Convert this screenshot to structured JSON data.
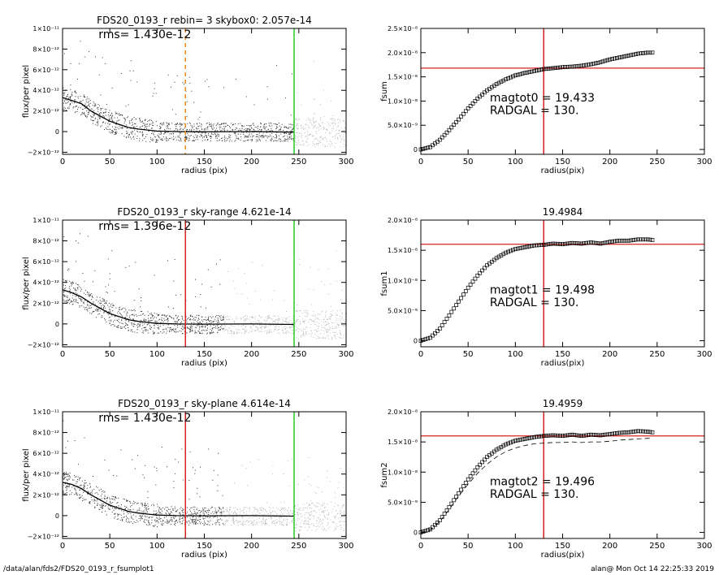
{
  "footer": {
    "path": "/data/alan/fds2/FDS20_0193_r_fsumplot1",
    "stamp": "alan@  Mon Oct 14 22:25:33 2019"
  },
  "colors": {
    "profile_line": "#000000",
    "scatter_dark": "#333333",
    "scatter_light": "#bbbbbb",
    "radgal_line": "#d62020",
    "aperture_line": "#22cc22",
    "orange_dash": "#f08a20"
  },
  "chart_data": [
    {
      "type": "scatter",
      "panel": "profile-1",
      "title": "FDS20_0193_r rebin= 3    skybox0:  2.057e-14",
      "annotation": "rms= 1.430e-12",
      "xlabel": "radius (pix)",
      "ylabel": "flux/per pixel",
      "xlim": [
        0,
        300
      ],
      "ylim": [
        -2.2e-12,
        1e-11
      ],
      "xticks": [
        "0",
        "50",
        "100",
        "150",
        "200",
        "250",
        "300"
      ],
      "yticks": [
        {
          "value": -2e-12,
          "label": "−2×10⁻¹²"
        },
        {
          "value": 0,
          "label": "0"
        },
        {
          "value": 2e-12,
          "label": "2×10⁻¹²"
        },
        {
          "value": 4e-12,
          "label": "4×10⁻¹²"
        },
        {
          "value": 6e-12,
          "label": "6×10⁻¹²"
        },
        {
          "value": 8e-12,
          "label": "8×10⁻¹²"
        },
        {
          "value": 1e-11,
          "label": "1×10⁻¹¹"
        }
      ],
      "profile": {
        "x": [
          0,
          10,
          20,
          30,
          40,
          50,
          60,
          70,
          80,
          90,
          100,
          120,
          150,
          200,
          245
        ],
        "y": [
          3.3e-12,
          3e-12,
          2.7e-12,
          2e-12,
          1.5e-12,
          1e-12,
          7e-13,
          4e-13,
          2.5e-13,
          1.5e-13,
          5e-14,
          0.0,
          -2e-14,
          0.0,
          -5e-14
        ]
      },
      "vlines": [
        {
          "x": 130,
          "color": "orange",
          "style": "dashed"
        },
        {
          "x": 245,
          "color": "green",
          "style": "solid"
        }
      ]
    },
    {
      "type": "line",
      "panel": "growth-1",
      "title": "",
      "ylabel": "fsum",
      "xlabel": "radius(pix)",
      "xlim": [
        0,
        300
      ],
      "ylim": [
        -1e-09,
        2.5e-08
      ],
      "xticks": [
        "0",
        "50",
        "100",
        "150",
        "200",
        "250",
        "300"
      ],
      "yticks": [
        {
          "value": 0,
          "label": "0"
        },
        {
          "value": 5e-09,
          "label": "5.0×10⁻⁹"
        },
        {
          "value": 1e-08,
          "label": "1.0×10⁻⁸"
        },
        {
          "value": 1.5e-08,
          "label": "1.5×10⁻⁸"
        },
        {
          "value": 2e-08,
          "label": "2.0×10⁻⁸"
        },
        {
          "value": 2.5e-08,
          "label": "2.5×10⁻⁸"
        }
      ],
      "growth": {
        "x": [
          0,
          10,
          20,
          30,
          40,
          50,
          60,
          70,
          80,
          90,
          100,
          110,
          120,
          130,
          140,
          150,
          160,
          170,
          180,
          190,
          200,
          210,
          220,
          230,
          240,
          245
        ],
        "y": [
          0.0,
          5e-10,
          2e-09,
          4e-09,
          6.2e-09,
          8.5e-09,
          1.05e-08,
          1.22e-08,
          1.35e-08,
          1.45e-08,
          1.53e-08,
          1.58e-08,
          1.62e-08,
          1.66e-08,
          1.68e-08,
          1.7e-08,
          1.71e-08,
          1.73e-08,
          1.76e-08,
          1.8e-08,
          1.86e-08,
          1.9e-08,
          1.94e-08,
          1.98e-08,
          2e-08,
          2e-08
        ]
      },
      "hline": 1.68e-08,
      "vline": 130,
      "text": [
        "magtot0 =  19.433",
        "RADGAL =    130."
      ]
    },
    {
      "type": "scatter",
      "panel": "profile-2",
      "title": "FDS20_0193_r sky-range  4.621e-14",
      "annotation": "rms= 1.396e-12",
      "xlabel": "radius (pix)",
      "ylabel": "flux/per pixel",
      "xlim": [
        0,
        300
      ],
      "ylim": [
        -2.2e-12,
        1e-11
      ],
      "xticks": [
        "0",
        "50",
        "100",
        "150",
        "200",
        "250",
        "300"
      ],
      "yticks": [
        {
          "value": -2e-12,
          "label": "−2×10⁻¹²"
        },
        {
          "value": 0,
          "label": "0"
        },
        {
          "value": 2e-12,
          "label": "2×10⁻¹²"
        },
        {
          "value": 4e-12,
          "label": "4×10⁻¹²"
        },
        {
          "value": 6e-12,
          "label": "6×10⁻¹²"
        },
        {
          "value": 8e-12,
          "label": "8×10⁻¹²"
        },
        {
          "value": 1e-11,
          "label": "1×10⁻¹¹"
        }
      ],
      "profile": {
        "x": [
          0,
          10,
          20,
          30,
          40,
          50,
          60,
          70,
          80,
          90,
          100,
          120,
          150,
          200,
          245
        ],
        "y": [
          3.3e-12,
          3e-12,
          2.6e-12,
          2e-12,
          1.5e-12,
          1e-12,
          7e-13,
          4e-13,
          2.5e-13,
          1.5e-13,
          5e-14,
          0.0,
          -2e-14,
          0.0,
          -5e-14
        ]
      },
      "vlines": [
        {
          "x": 130,
          "color": "red",
          "style": "solid"
        },
        {
          "x": 245,
          "color": "green",
          "style": "solid"
        }
      ]
    },
    {
      "type": "line",
      "panel": "growth-2",
      "title": "19.4984",
      "ylabel": "fsum1",
      "xlabel": "radius(pix)",
      "xlim": [
        0,
        300
      ],
      "ylim": [
        -1e-09,
        2e-08
      ],
      "xticks": [
        "0",
        "50",
        "100",
        "150",
        "200",
        "250",
        "300"
      ],
      "yticks": [
        {
          "value": 0,
          "label": "0"
        },
        {
          "value": 5e-09,
          "label": "5.0×10⁻⁹"
        },
        {
          "value": 1e-08,
          "label": "1.0×10⁻⁸"
        },
        {
          "value": 1.5e-08,
          "label": "1.5×10⁻⁸"
        },
        {
          "value": 2e-08,
          "label": "2.0×10⁻⁸"
        }
      ],
      "growth": {
        "x": [
          0,
          10,
          20,
          30,
          40,
          50,
          60,
          70,
          80,
          90,
          100,
          110,
          120,
          130,
          140,
          150,
          160,
          170,
          180,
          190,
          200,
          210,
          220,
          230,
          240,
          245
        ],
        "y": [
          0.0,
          5e-10,
          2e-09,
          4.2e-09,
          6.5e-09,
          8.8e-09,
          1.08e-08,
          1.25e-08,
          1.37e-08,
          1.46e-08,
          1.52e-08,
          1.55e-08,
          1.58e-08,
          1.59e-08,
          1.61e-08,
          1.6e-08,
          1.62e-08,
          1.61e-08,
          1.63e-08,
          1.61e-08,
          1.64e-08,
          1.66e-08,
          1.66e-08,
          1.68e-08,
          1.68e-08,
          1.67e-08
        ]
      },
      "hline": 1.6e-08,
      "vline": 130,
      "text": [
        "magtot1 =  19.498",
        "RADGAL =    130."
      ]
    },
    {
      "type": "scatter",
      "panel": "profile-3",
      "title": "FDS20_0193_r sky-plane  4.614e-14",
      "annotation": "rms= 1.430e-12",
      "xlabel": "radius (pix)",
      "ylabel": "flux/per pixel",
      "xlim": [
        0,
        300
      ],
      "ylim": [
        -2.2e-12,
        1e-11
      ],
      "xticks": [
        "0",
        "50",
        "100",
        "150",
        "200",
        "250",
        "300"
      ],
      "yticks": [
        {
          "value": -2e-12,
          "label": "−2×10⁻¹²"
        },
        {
          "value": 0,
          "label": "0"
        },
        {
          "value": 2e-12,
          "label": "2×10⁻¹²"
        },
        {
          "value": 4e-12,
          "label": "4×10⁻¹²"
        },
        {
          "value": 6e-12,
          "label": "6×10⁻¹²"
        },
        {
          "value": 8e-12,
          "label": "8×10⁻¹²"
        },
        {
          "value": 1e-11,
          "label": "1×10⁻¹¹"
        }
      ],
      "profile": {
        "x": [
          0,
          10,
          20,
          30,
          40,
          50,
          60,
          70,
          80,
          90,
          100,
          120,
          150,
          200,
          245
        ],
        "y": [
          3.2e-12,
          3e-12,
          2.6e-12,
          2e-12,
          1.5e-12,
          1e-12,
          7e-13,
          4e-13,
          2.5e-13,
          1.5e-13,
          5e-14,
          0.0,
          -2e-14,
          0.0,
          -5e-14
        ]
      },
      "vlines": [
        {
          "x": 130,
          "color": "red",
          "style": "solid"
        },
        {
          "x": 245,
          "color": "green",
          "style": "solid"
        }
      ]
    },
    {
      "type": "line",
      "panel": "growth-3",
      "title": "19.4959",
      "ylabel": "fsum2",
      "xlabel": "radius(pix)",
      "xlim": [
        0,
        300
      ],
      "ylim": [
        -1e-09,
        2e-08
      ],
      "xticks": [
        "0",
        "50",
        "100",
        "150",
        "200",
        "250",
        "300"
      ],
      "yticks": [
        {
          "value": 0,
          "label": "0"
        },
        {
          "value": 5e-09,
          "label": "5.0×10⁻⁹"
        },
        {
          "value": 1e-08,
          "label": "1.0×10⁻⁸"
        },
        {
          "value": 1.5e-08,
          "label": "1.5×10⁻⁸"
        },
        {
          "value": 2e-08,
          "label": "2.0×10⁻⁸"
        }
      ],
      "growth": {
        "x": [
          0,
          10,
          20,
          30,
          40,
          50,
          60,
          70,
          80,
          90,
          100,
          110,
          120,
          130,
          140,
          150,
          160,
          170,
          180,
          190,
          200,
          210,
          220,
          230,
          240,
          245
        ],
        "y": [
          0.0,
          5e-10,
          2e-09,
          4.2e-09,
          6.5e-09,
          8.8e-09,
          1.08e-08,
          1.25e-08,
          1.37e-08,
          1.46e-08,
          1.52e-08,
          1.55e-08,
          1.58e-08,
          1.6e-08,
          1.61e-08,
          1.6e-08,
          1.62e-08,
          1.6e-08,
          1.62e-08,
          1.61e-08,
          1.63e-08,
          1.65e-08,
          1.66e-08,
          1.68e-08,
          1.67e-08,
          1.66e-08
        ]
      },
      "dashed": {
        "x": [
          0,
          10,
          20,
          30,
          40,
          50,
          60,
          70,
          80,
          90,
          100,
          110,
          120,
          130,
          140,
          150,
          160,
          170,
          180,
          190,
          200,
          210,
          220,
          230,
          240,
          245
        ],
        "y": [
          0.0,
          4e-10,
          1.8e-09,
          3.8e-09,
          6e-09,
          8e-09,
          9.8e-09,
          1.13e-08,
          1.25e-08,
          1.34e-08,
          1.4e-08,
          1.44e-08,
          1.47e-08,
          1.48e-08,
          1.49e-08,
          1.49e-08,
          1.5e-08,
          1.49e-08,
          1.5e-08,
          1.5e-08,
          1.51e-08,
          1.53e-08,
          1.54e-08,
          1.55e-08,
          1.56e-08,
          1.56e-08
        ]
      },
      "hline": 1.6e-08,
      "vline": 130,
      "text": [
        "magtot2 =  19.496",
        "RADGAL =    130."
      ]
    }
  ]
}
